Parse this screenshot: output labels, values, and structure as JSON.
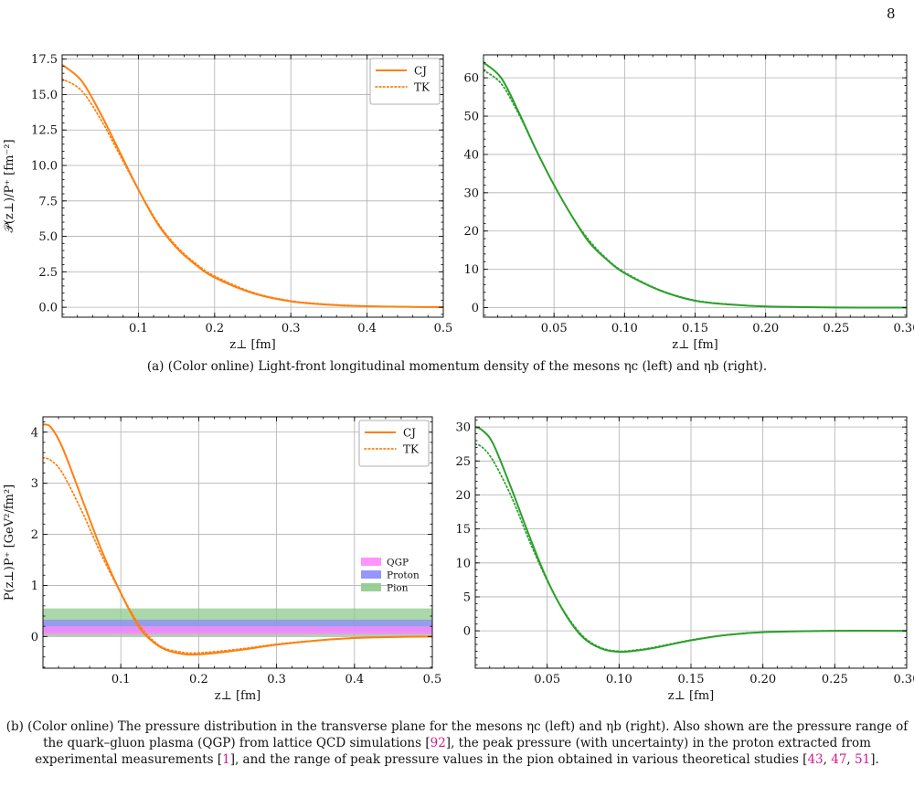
{
  "page_number": "8",
  "captions": {
    "a": {
      "text": "(a) (Color online) Light-front longitudinal momentum density of the mesons ηc (left) and ηb (right)."
    },
    "b": {
      "part1": "(b) (Color online) The pressure distribution in the transverse plane for the mesons ηc (left) and ηb (right). Also shown are the pressure range of the quark–gluon plasma (QGP) from lattice QCD simulations [",
      "ref1": "92",
      "part2": "], the peak pressure (with uncertainty) in the proton extracted from experimental measurements [",
      "ref2": "1",
      "part3": "], and the range of peak pressure values in the pion obtained in various theoretical studies [",
      "ref3": "43",
      "sep1": ", ",
      "ref4": "47",
      "sep2": ", ",
      "ref5": "51",
      "part4": "]."
    }
  },
  "chart_data": [
    {
      "type": "line",
      "xlabel": "z⊥ [fm]",
      "ylabel": "𝒫(z⊥)/P⁺ [fm⁻²]",
      "xlim": [
        0,
        0.5
      ],
      "ylim": [
        -0.7,
        17.8
      ],
      "xticks": [
        "0.1",
        "0.2",
        "0.3",
        "0.4",
        "0.5"
      ],
      "xtick_values": [
        0.1,
        0.2,
        0.3,
        0.4,
        0.5
      ],
      "yticks": [
        "0.0",
        "2.5",
        "5.0",
        "7.5",
        "10.0",
        "12.5",
        "15.0",
        "17.5"
      ],
      "ytick_values": [
        0,
        2.5,
        5,
        7.5,
        10,
        12.5,
        15,
        17.5
      ],
      "grid": true,
      "legend": "top-right",
      "series": [
        {
          "name": "CJ",
          "style": "solid",
          "color": "#ff7f0e",
          "x": [
            0,
            0.025,
            0.05,
            0.075,
            0.1,
            0.125,
            0.15,
            0.175,
            0.2,
            0.25,
            0.3,
            0.35,
            0.4,
            0.45,
            0.5
          ],
          "y": [
            17.1,
            16.0,
            13.7,
            11.0,
            8.3,
            5.9,
            4.2,
            3.0,
            2.1,
            1.0,
            0.42,
            0.18,
            0.07,
            0.03,
            0.01
          ]
        },
        {
          "name": "TK",
          "style": "dotted",
          "color": "#ff7f0e",
          "x": [
            0,
            0.025,
            0.05,
            0.075,
            0.1,
            0.125,
            0.15,
            0.175,
            0.2,
            0.25,
            0.3,
            0.35,
            0.4,
            0.45,
            0.5
          ],
          "y": [
            16.1,
            15.3,
            13.3,
            10.8,
            8.3,
            6.0,
            4.3,
            3.1,
            2.2,
            1.05,
            0.45,
            0.2,
            0.08,
            0.03,
            0.01
          ]
        }
      ]
    },
    {
      "type": "line",
      "xlabel": "z⊥ [fm]",
      "ylabel": "",
      "xlim": [
        0,
        0.3
      ],
      "ylim": [
        -2.5,
        66
      ],
      "xticks": [
        "0.05",
        "0.10",
        "0.15",
        "0.20",
        "0.25",
        "0.30"
      ],
      "xtick_values": [
        0.05,
        0.1,
        0.15,
        0.2,
        0.25,
        0.3
      ],
      "yticks": [
        "0",
        "10",
        "20",
        "30",
        "40",
        "50",
        "60"
      ],
      "ytick_values": [
        0,
        10,
        20,
        30,
        40,
        50,
        60
      ],
      "grid": true,
      "series": [
        {
          "name": "",
          "style": "solid",
          "color": "#2ca02c",
          "x": [
            0,
            0.0125,
            0.025,
            0.0375,
            0.05,
            0.0625,
            0.075,
            0.0875,
            0.1,
            0.125,
            0.15,
            0.175,
            0.2,
            0.25,
            0.3
          ],
          "y": [
            64,
            60,
            51,
            41,
            32,
            24,
            17,
            12.5,
            9,
            4.5,
            1.8,
            0.8,
            0.3,
            0.05,
            0
          ]
        },
        {
          "name": "",
          "style": "dotted",
          "color": "#2ca02c",
          "x": [
            0,
            0.0125,
            0.025,
            0.0375,
            0.05,
            0.0625,
            0.075,
            0.0875,
            0.1,
            0.125,
            0.15,
            0.175,
            0.2,
            0.25,
            0.3
          ],
          "y": [
            62,
            58.5,
            50.5,
            41,
            32,
            24,
            17.5,
            12.7,
            9.2,
            4.6,
            1.9,
            0.85,
            0.32,
            0.05,
            0
          ]
        }
      ]
    },
    {
      "type": "line",
      "xlabel": "z⊥ [fm]",
      "ylabel": "P(z⊥)P⁺ [GeV²/fm²]",
      "xlim": [
        0,
        0.5
      ],
      "ylim": [
        -0.62,
        4.3
      ],
      "xticks": [
        "0.1",
        "0.2",
        "0.3",
        "0.4",
        "0.5"
      ],
      "xtick_values": [
        0.1,
        0.2,
        0.3,
        0.4,
        0.5
      ],
      "yticks": [
        "0",
        "1",
        "2",
        "3",
        "4"
      ],
      "ytick_values": [
        0,
        1,
        2,
        3,
        4
      ],
      "grid": true,
      "legend": "top-right",
      "bands_legend": "right",
      "bands": [
        {
          "name": "Pion",
          "y0": 0.0,
          "y1": 0.55,
          "color": "#8fcb8c",
          "opacity": 0.75
        },
        {
          "name": "Proton",
          "y0": 0.08,
          "y1": 0.33,
          "color": "#8b8bff",
          "opacity": 0.75
        },
        {
          "name": "QGP",
          "y0": 0.04,
          "y1": 0.2,
          "color": "#ff88ff",
          "opacity": 0.8
        }
      ],
      "series": [
        {
          "name": "CJ",
          "style": "solid",
          "color": "#ff7f0e",
          "x": [
            0,
            0.01,
            0.025,
            0.05,
            0.075,
            0.1,
            0.125,
            0.15,
            0.175,
            0.2,
            0.25,
            0.3,
            0.35,
            0.4,
            0.45,
            0.5
          ],
          "y": [
            4.15,
            4.1,
            3.7,
            2.7,
            1.7,
            0.85,
            0.15,
            -0.2,
            -0.33,
            -0.35,
            -0.27,
            -0.16,
            -0.08,
            -0.03,
            -0.01,
            0
          ]
        },
        {
          "name": "TK",
          "style": "dotted",
          "color": "#ff7f0e",
          "x": [
            0,
            0.01,
            0.025,
            0.05,
            0.075,
            0.1,
            0.125,
            0.15,
            0.175,
            0.2,
            0.25,
            0.3,
            0.35,
            0.4,
            0.45,
            0.5
          ],
          "y": [
            3.5,
            3.45,
            3.2,
            2.45,
            1.6,
            0.85,
            0.2,
            -0.18,
            -0.3,
            -0.32,
            -0.25,
            -0.15,
            -0.08,
            -0.03,
            -0.01,
            0
          ]
        }
      ]
    },
    {
      "type": "line",
      "xlabel": "z⊥ [fm]",
      "ylabel": "",
      "xlim": [
        0,
        0.3
      ],
      "ylim": [
        -5.5,
        31.5
      ],
      "xticks": [
        "0.05",
        "0.10",
        "0.15",
        "0.20",
        "0.25",
        "0.30"
      ],
      "xtick_values": [
        0.05,
        0.1,
        0.15,
        0.2,
        0.25,
        0.3
      ],
      "yticks": [
        "0",
        "5",
        "10",
        "15",
        "20",
        "25",
        "30"
      ],
      "ytick_values": [
        0,
        5,
        10,
        15,
        20,
        25,
        30
      ],
      "grid": true,
      "series": [
        {
          "name": "",
          "style": "solid",
          "color": "#2ca02c",
          "x": [
            0,
            0.005,
            0.0125,
            0.025,
            0.0375,
            0.05,
            0.0625,
            0.075,
            0.0875,
            0.1,
            0.1125,
            0.125,
            0.15,
            0.175,
            0.2,
            0.25,
            0.3
          ],
          "y": [
            30,
            29.5,
            27.5,
            21,
            14,
            7.5,
            2.5,
            -1,
            -2.6,
            -3.1,
            -2.9,
            -2.5,
            -1.4,
            -0.6,
            -0.2,
            0,
            0
          ]
        },
        {
          "name": "",
          "style": "dotted",
          "color": "#2ca02c",
          "x": [
            0,
            0.005,
            0.0125,
            0.025,
            0.0375,
            0.05,
            0.0625,
            0.075,
            0.0875,
            0.1,
            0.1125,
            0.125,
            0.15,
            0.175,
            0.2,
            0.25,
            0.3
          ],
          "y": [
            27.5,
            27,
            25,
            19.8,
            13.3,
            7.4,
            2.6,
            -0.8,
            -2.5,
            -3.0,
            -2.8,
            -2.4,
            -1.35,
            -0.6,
            -0.2,
            0,
            0
          ]
        }
      ]
    }
  ]
}
